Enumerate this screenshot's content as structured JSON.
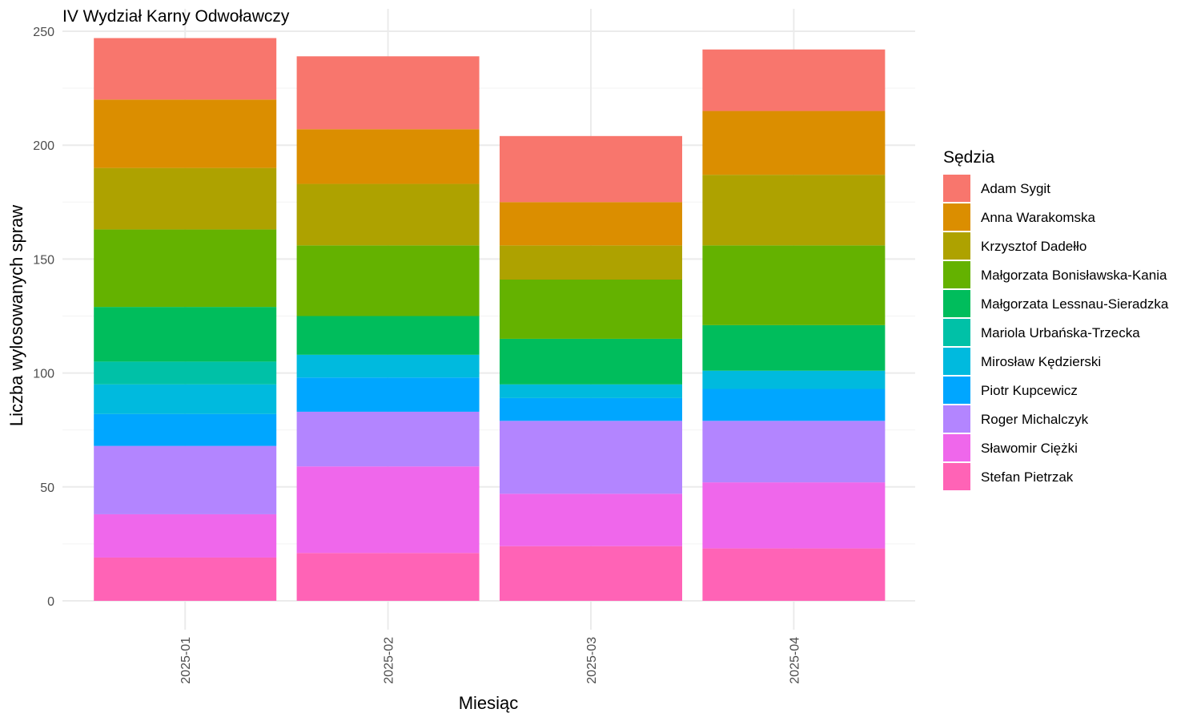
{
  "chart_data": {
    "type": "bar",
    "stacked": true,
    "title": "IV Wydział Karny Odwoławczy",
    "xlabel": "Miesiąc",
    "ylabel": "Liczba wylosowanych spraw",
    "ylim": [
      0,
      250
    ],
    "yticks": [
      0,
      50,
      100,
      150,
      200,
      250
    ],
    "grid": true,
    "legend": {
      "title": "Sędzia",
      "position": "right"
    },
    "categories": [
      "2025-01",
      "2025-02",
      "2025-03",
      "2025-04"
    ],
    "series": [
      {
        "name": "Adam Sygit",
        "color": "#F8766D",
        "values": [
          27,
          32,
          29,
          27
        ]
      },
      {
        "name": "Anna Warakomska",
        "color": "#DB8E00",
        "values": [
          30,
          24,
          19,
          28
        ]
      },
      {
        "name": "Krzysztof Dadełło",
        "color": "#AEA200",
        "values": [
          27,
          27,
          15,
          31
        ]
      },
      {
        "name": "Małgorzata Bonisławska-Kania",
        "color": "#64B200",
        "values": [
          34,
          31,
          26,
          35
        ]
      },
      {
        "name": "Małgorzata Lessnau-Sieradzka",
        "color": "#00BD5C",
        "values": [
          24,
          17,
          20,
          20
        ]
      },
      {
        "name": "Mariola Urbańska-Trzecka",
        "color": "#00C1A7",
        "values": [
          10,
          0,
          0,
          0
        ]
      },
      {
        "name": "Mirosław Kędzierski",
        "color": "#00BADE",
        "values": [
          13,
          10,
          6,
          8
        ]
      },
      {
        "name": "Piotr Kupcewicz",
        "color": "#00A6FF",
        "values": [
          14,
          15,
          10,
          14
        ]
      },
      {
        "name": "Roger Michalczyk",
        "color": "#B385FF",
        "values": [
          30,
          24,
          32,
          27
        ]
      },
      {
        "name": "Sławomir Ciężki",
        "color": "#EF67EB",
        "values": [
          19,
          38,
          23,
          29
        ]
      },
      {
        "name": "Stefan Pietrzak",
        "color": "#FF63B6",
        "values": [
          19,
          21,
          24,
          23
        ]
      }
    ]
  }
}
